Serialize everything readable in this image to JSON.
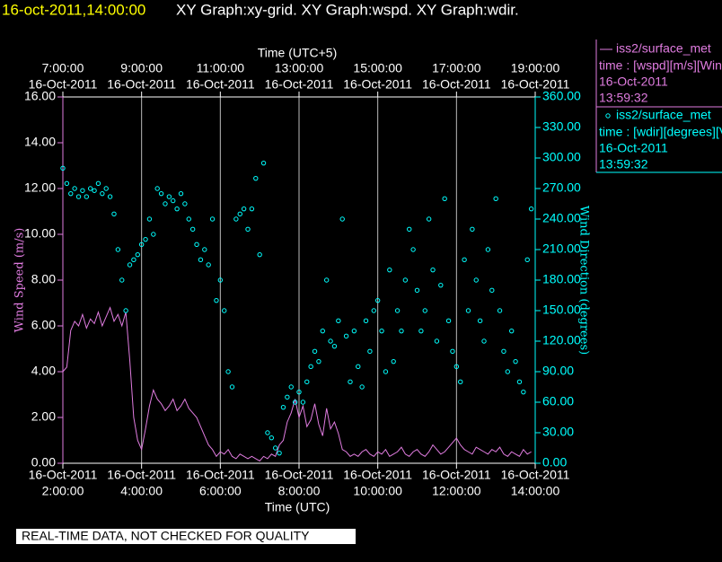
{
  "chart_data": {
    "type": "line",
    "title": "16-oct-2011,14:00:00",
    "subtitle": "XY Graph:xy-grid.  XY Graph:wspd.  XY Graph:wdir.",
    "xlabel": "Time (UTC)",
    "x2label": "Time (UTC+5)",
    "ylabel": "Wind Speed (m/s)",
    "y2label": "Wind Direction (degrees)",
    "note": "REAL-TIME DATA, NOT CHECKED FOR QUALITY",
    "grid": true,
    "xlim": [
      2,
      14
    ],
    "xticks": [
      {
        "value": 2,
        "date": "16-Oct-2011",
        "label": "2:00:00"
      },
      {
        "value": 4,
        "date": "16-Oct-2011",
        "label": "4:00:00"
      },
      {
        "value": 6,
        "date": "16-Oct-2011",
        "label": "6:00:00"
      },
      {
        "value": 8,
        "date": "16-Oct-2011",
        "label": "8:00:00"
      },
      {
        "value": 10,
        "date": "16-Oct-2011",
        "label": "10:00:00"
      },
      {
        "value": 12,
        "date": "16-Oct-2011",
        "label": "12:00:00"
      },
      {
        "value": 14,
        "date": "16-Oct-2011",
        "label": "14:00:00"
      }
    ],
    "x2ticks": [
      {
        "value": 2,
        "date": "16-Oct-2011",
        "label": "7:00:00"
      },
      {
        "value": 4,
        "date": "16-Oct-2011",
        "label": "9:00:00"
      },
      {
        "value": 6,
        "date": "16-Oct-2011",
        "label": "11:00:00"
      },
      {
        "value": 8,
        "date": "16-Oct-2011",
        "label": "13:00:00"
      },
      {
        "value": 10,
        "date": "16-Oct-2011",
        "label": "15:00:00"
      },
      {
        "value": 12,
        "date": "16-Oct-2011",
        "label": "17:00:00"
      },
      {
        "value": 14,
        "date": "16-Oct-2011",
        "label": "19:00:00"
      }
    ],
    "ylim": [
      0,
      16
    ],
    "yticks": [
      {
        "value": 0,
        "label": "0.00"
      },
      {
        "value": 2,
        "label": "2.00"
      },
      {
        "value": 4,
        "label": "4.00"
      },
      {
        "value": 6,
        "label": "6.00"
      },
      {
        "value": 8,
        "label": "8.00"
      },
      {
        "value": 10,
        "label": "10.00"
      },
      {
        "value": 12,
        "label": "12.00"
      },
      {
        "value": 14,
        "label": "14.00"
      },
      {
        "value": 16,
        "label": "16.00"
      }
    ],
    "y2lim": [
      0,
      360
    ],
    "y2ticks": [
      {
        "value": 0,
        "label": "0.00"
      },
      {
        "value": 30,
        "label": "30.00"
      },
      {
        "value": 60,
        "label": "60.00"
      },
      {
        "value": 90,
        "label": "90.00"
      },
      {
        "value": 120,
        "label": "120.00"
      },
      {
        "value": 150,
        "label": "150.00"
      },
      {
        "value": 180,
        "label": "180.00"
      },
      {
        "value": 210,
        "label": "210.00"
      },
      {
        "value": 240,
        "label": "240.00"
      },
      {
        "value": 270,
        "label": "270.00"
      },
      {
        "value": 300,
        "label": "300.00"
      },
      {
        "value": 330,
        "label": "330.00"
      },
      {
        "value": 360,
        "label": "360.00"
      }
    ],
    "x": [
      2.0,
      2.1,
      2.2,
      2.3,
      2.4,
      2.5,
      2.6,
      2.7,
      2.8,
      2.9,
      3.0,
      3.1,
      3.2,
      3.3,
      3.4,
      3.5,
      3.6,
      3.7,
      3.8,
      3.9,
      4.0,
      4.1,
      4.2,
      4.3,
      4.4,
      4.5,
      4.6,
      4.7,
      4.8,
      4.9,
      5.0,
      5.1,
      5.2,
      5.3,
      5.4,
      5.5,
      5.6,
      5.7,
      5.8,
      5.9,
      6.0,
      6.1,
      6.2,
      6.3,
      6.4,
      6.5,
      6.6,
      6.7,
      6.8,
      6.9,
      7.0,
      7.1,
      7.2,
      7.3,
      7.4,
      7.5,
      7.6,
      7.7,
      7.8,
      7.9,
      8.0,
      8.1,
      8.2,
      8.3,
      8.4,
      8.5,
      8.6,
      8.7,
      8.8,
      8.9,
      9.0,
      9.1,
      9.2,
      9.3,
      9.4,
      9.5,
      9.6,
      9.7,
      9.8,
      9.9,
      10.0,
      10.1,
      10.2,
      10.3,
      10.4,
      10.5,
      10.6,
      10.7,
      10.8,
      10.9,
      11.0,
      11.1,
      11.2,
      11.3,
      11.4,
      11.5,
      11.6,
      11.7,
      11.8,
      11.9,
      12.0,
      12.1,
      12.2,
      12.3,
      12.4,
      12.5,
      12.6,
      12.7,
      12.8,
      12.9,
      13.0,
      13.1,
      13.2,
      13.3,
      13.4,
      13.5,
      13.6,
      13.7,
      13.8,
      13.9
    ],
    "series": [
      {
        "name": "iss2/surface_met",
        "type": "line",
        "color": "#e07ce0",
        "description": "time : [wspd][m/s][Wind",
        "date": "16-Oct-2011",
        "time": "13:59:32",
        "values": [
          4.0,
          4.2,
          5.8,
          6.2,
          6.0,
          6.5,
          5.9,
          6.3,
          6.1,
          6.6,
          6.0,
          6.4,
          6.8,
          6.2,
          6.5,
          6.0,
          6.6,
          4.5,
          2.0,
          1.0,
          0.6,
          1.5,
          2.5,
          3.2,
          2.8,
          2.6,
          2.3,
          2.5,
          2.8,
          2.3,
          2.5,
          2.8,
          2.4,
          2.2,
          2.0,
          1.6,
          1.2,
          0.8,
          0.6,
          0.3,
          0.5,
          0.4,
          0.6,
          0.3,
          0.2,
          0.4,
          0.3,
          0.2,
          0.3,
          0.2,
          0.1,
          0.3,
          0.2,
          0.4,
          0.3,
          0.8,
          1.0,
          1.8,
          2.2,
          2.8,
          2.0,
          2.5,
          1.6,
          1.9,
          2.6,
          1.7,
          1.2,
          2.4,
          1.5,
          1.8,
          1.3,
          0.6,
          0.5,
          0.3,
          0.4,
          0.3,
          0.5,
          0.6,
          0.4,
          0.3,
          0.5,
          0.4,
          0.6,
          0.3,
          0.4,
          0.5,
          0.7,
          0.4,
          0.3,
          0.5,
          0.6,
          0.4,
          0.3,
          0.5,
          0.8,
          0.6,
          0.4,
          0.5,
          0.7,
          0.9,
          1.1,
          0.8,
          0.6,
          0.5,
          0.4,
          0.7,
          0.6,
          0.5,
          0.4,
          0.6,
          0.5,
          0.7,
          0.4,
          0.3,
          0.5,
          0.4,
          0.3,
          0.6,
          0.4,
          0.5
        ]
      },
      {
        "name": "iss2/surface_met",
        "type": "scatter",
        "axis": "y2",
        "color": "#00ffff",
        "description": "time : [wdir][degrees][V",
        "date": "16-Oct-2011",
        "time": "13:59:32",
        "values": [
          290,
          275,
          265,
          270,
          262,
          268,
          262,
          270,
          268,
          275,
          265,
          270,
          262,
          245,
          210,
          180,
          150,
          195,
          200,
          205,
          215,
          220,
          240,
          225,
          270,
          265,
          255,
          262,
          258,
          250,
          265,
          255,
          240,
          230,
          215,
          200,
          210,
          195,
          240,
          160,
          180,
          150,
          90,
          75,
          240,
          245,
          250,
          230,
          250,
          280,
          205,
          295,
          30,
          25,
          15,
          10,
          55,
          65,
          75,
          60,
          70,
          60,
          80,
          95,
          110,
          100,
          130,
          180,
          120,
          115,
          140,
          240,
          125,
          80,
          130,
          95,
          75,
          140,
          110,
          150,
          160,
          130,
          90,
          190,
          100,
          150,
          130,
          180,
          230,
          210,
          170,
          130,
          150,
          240,
          190,
          120,
          175,
          260,
          140,
          110,
          95,
          80,
          200,
          150,
          230,
          180,
          140,
          120,
          210,
          170,
          260,
          150,
          110,
          90,
          130,
          100,
          80,
          70,
          200,
          250
        ]
      }
    ]
  }
}
